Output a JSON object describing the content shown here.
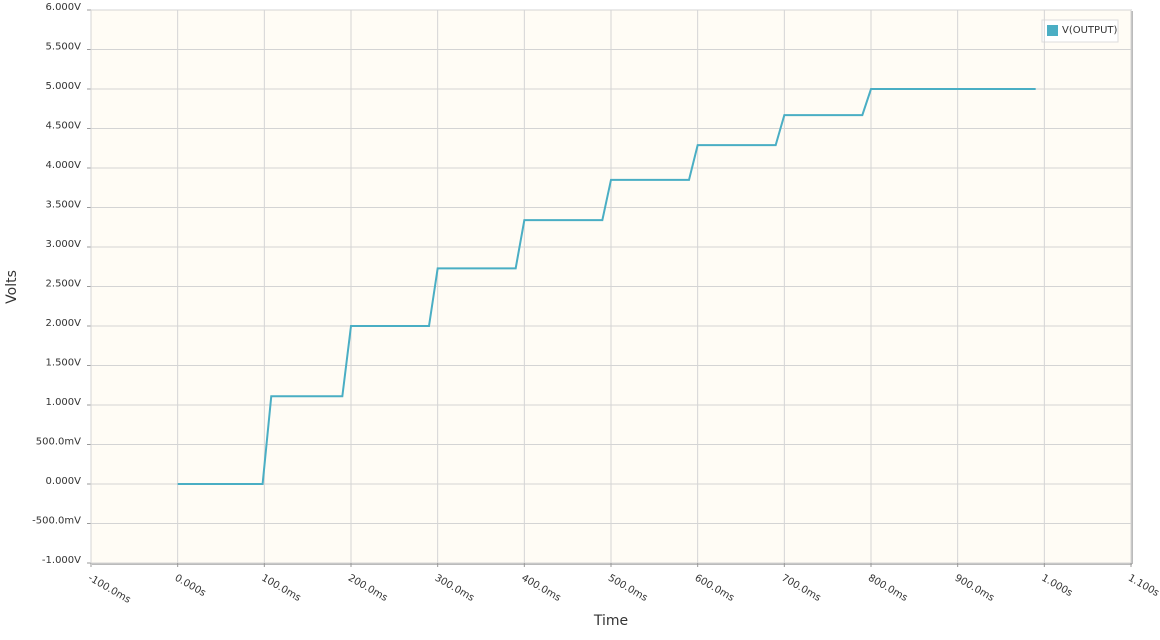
{
  "chart_data": {
    "type": "line",
    "x_label": "Time",
    "y_label": "Volts",
    "xlim": [
      -0.1,
      1.1
    ],
    "xticks": [
      {
        "value": -0.1,
        "label": "-100.0ms"
      },
      {
        "value": 0,
        "label": "0.000s"
      },
      {
        "value": 0.1,
        "label": "100.0ms"
      },
      {
        "value": 0.2,
        "label": "200.0ms"
      },
      {
        "value": 0.3,
        "label": "300.0ms"
      },
      {
        "value": 0.4,
        "label": "400.0ms"
      },
      {
        "value": 0.5,
        "label": "500.0ms"
      },
      {
        "value": 0.6,
        "label": "600.0ms"
      },
      {
        "value": 0.7,
        "label": "700.0ms"
      },
      {
        "value": 0.8,
        "label": "800.0ms"
      },
      {
        "value": 0.9,
        "label": "900.0ms"
      },
      {
        "value": 1.0,
        "label": "1.000s"
      },
      {
        "value": 1.1,
        "label": "1.100s"
      }
    ],
    "ylim": [
      -1,
      6
    ],
    "yticks": [
      {
        "value": -1,
        "label": "-1.000V"
      },
      {
        "value": -0.5,
        "label": "-500.0mV"
      },
      {
        "value": 0,
        "label": "0.000V"
      },
      {
        "value": 0.5,
        "label": "500.0mV"
      },
      {
        "value": 1,
        "label": "1.000V"
      },
      {
        "value": 1.5,
        "label": "1.500V"
      },
      {
        "value": 2,
        "label": "2.000V"
      },
      {
        "value": 2.5,
        "label": "2.500V"
      },
      {
        "value": 3,
        "label": "3.000V"
      },
      {
        "value": 3.5,
        "label": "3.500V"
      },
      {
        "value": 4,
        "label": "4.000V"
      },
      {
        "value": 4.5,
        "label": "4.500V"
      },
      {
        "value": 5,
        "label": "5.000V"
      },
      {
        "value": 5.5,
        "label": "5.500V"
      },
      {
        "value": 6,
        "label": "6.000V"
      }
    ],
    "grid": true,
    "legend": "top-right",
    "x": [
      0,
      0.098,
      0.108,
      0.19,
      0.2,
      0.29,
      0.3,
      0.39,
      0.4,
      0.49,
      0.5,
      0.59,
      0.6,
      0.69,
      0.7,
      0.79,
      0.8,
      0.99
    ],
    "series": [
      {
        "name": "V(OUTPUT)",
        "color": "#4aaec4",
        "values": [
          0,
          0,
          1.11,
          1.11,
          2.0,
          2.0,
          2.73,
          2.73,
          3.34,
          3.34,
          3.85,
          3.85,
          4.29,
          4.29,
          4.67,
          4.67,
          5.0,
          5.0
        ]
      }
    ]
  }
}
